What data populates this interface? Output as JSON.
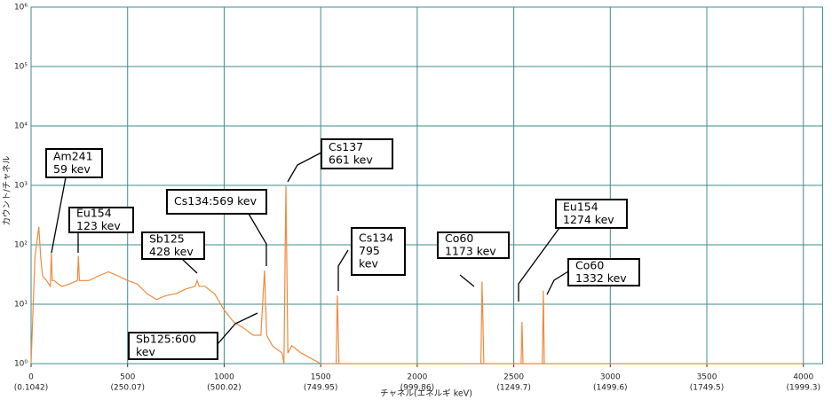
{
  "chart_data": {
    "type": "line",
    "x_label": "チャネル(エネルギ keV)",
    "y_label": "カウント/チャネル",
    "log_y": true,
    "grid": true,
    "grid_color": "#3f8c8c",
    "xlim": [
      0,
      4100
    ],
    "ylim": [
      1,
      1000000
    ],
    "xticks": [
      0,
      500,
      1000,
      1500,
      2000,
      2500,
      3000,
      3500,
      4000
    ],
    "xtick_energy_labels": [
      "(0.1042)",
      "(250.07)",
      "(500.02)",
      "(749.95)",
      "(999.86)",
      "(1249.7)",
      "(1499.6)",
      "(1749.5)",
      "(1999.3)"
    ],
    "yticks": [
      {
        "value": 1,
        "label": "10⁰"
      },
      {
        "value": 10,
        "label": "10¹"
      },
      {
        "value": 100,
        "label": "10²"
      },
      {
        "value": 1000,
        "label": "10³"
      },
      {
        "value": 10000,
        "label": "10⁴"
      },
      {
        "value": 100000,
        "label": "10⁵"
      },
      {
        "value": 1000000,
        "label": "10⁶"
      }
    ],
    "series": [
      {
        "color": "#f08a3c",
        "x": [
          0,
          20,
          40,
          50,
          60,
          80,
          100,
          105,
          110,
          120,
          140,
          160,
          200,
          240,
          245,
          250,
          260,
          300,
          350,
          400,
          450,
          500,
          550,
          600,
          650,
          700,
          750,
          800,
          850,
          860,
          870,
          900,
          950,
          1000,
          1050,
          1100,
          1150,
          1190,
          1209,
          1220,
          1250,
          1300,
          1310,
          1320,
          1330,
          1350,
          1400,
          1500,
          1580,
          1586,
          1595,
          1700,
          1800,
          2000,
          2200,
          2330,
          2336,
          2345,
          2400,
          2500,
          2538,
          2543,
          2548,
          2600,
          2648,
          2653,
          2658,
          2800,
          3000,
          3500,
          4000
        ],
        "values": [
          1,
          60,
          200,
          60,
          30,
          25,
          20,
          74,
          25,
          25,
          22,
          20,
          22,
          25,
          65,
          25,
          25,
          25,
          30,
          35,
          30,
          25,
          22,
          15,
          12,
          14,
          15,
          18,
          20,
          25,
          20,
          20,
          15,
          8,
          5,
          4,
          3,
          3,
          37,
          3,
          2,
          1.5,
          1,
          970,
          1.5,
          2,
          1.5,
          1,
          1,
          14,
          1,
          1,
          1,
          1,
          1,
          1,
          24,
          1,
          1,
          1,
          1,
          5,
          1,
          1,
          1,
          17,
          1,
          1,
          1,
          1,
          1
        ]
      }
    ],
    "annotations": [
      {
        "lines": [
          "Am241",
          "59 kev"
        ]
      },
      {
        "lines": [
          "Eu154",
          "123 kev"
        ]
      },
      {
        "lines": [
          "Sb125",
          "428 kev"
        ]
      },
      {
        "lines": [
          "Cs134:569 kev"
        ]
      },
      {
        "lines": [
          "Cs137",
          "661 kev"
        ]
      },
      {
        "lines": [
          "Cs134",
          "795",
          "kev"
        ]
      },
      {
        "lines": [
          "Co60",
          "1173 kev"
        ]
      },
      {
        "lines": [
          "Eu154",
          "1274 kev"
        ]
      },
      {
        "lines": [
          "Co60",
          "1332 kev"
        ]
      },
      {
        "lines": [
          "Sb125:600",
          "kev"
        ]
      }
    ]
  }
}
